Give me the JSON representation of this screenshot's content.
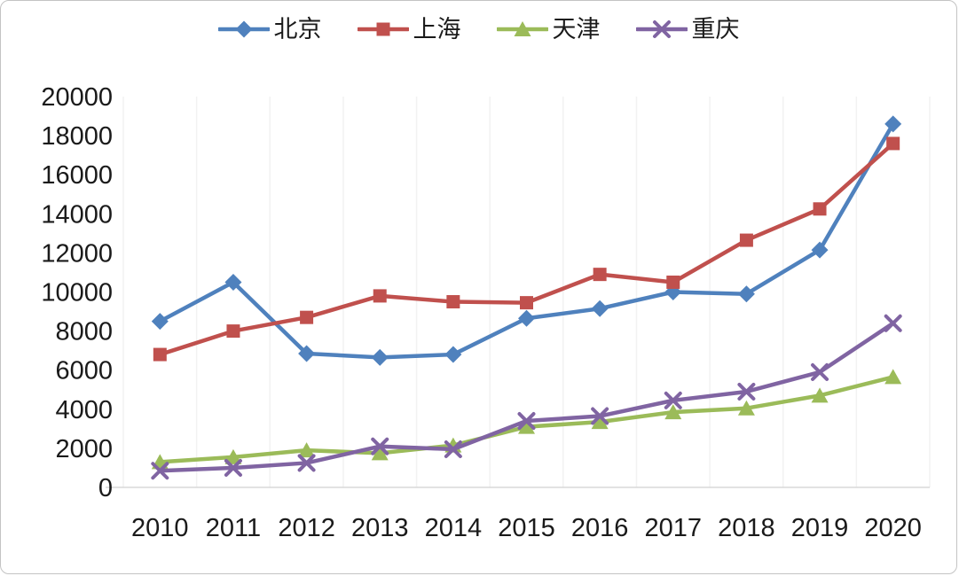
{
  "chart_data": {
    "type": "line",
    "title": "",
    "xlabel": "",
    "ylabel": "",
    "x": [
      "2010",
      "2011",
      "2012",
      "2013",
      "2014",
      "2015",
      "2016",
      "2017",
      "2018",
      "2019",
      "2020"
    ],
    "yticks": [
      "0",
      "2000",
      "4000",
      "6000",
      "8000",
      "10000",
      "12000",
      "14000",
      "16000",
      "18000",
      "20000"
    ],
    "ylim": [
      0,
      20000
    ],
    "ytick_step": 2000,
    "grid": "vertical-only",
    "legend_position": "top",
    "series": [
      {
        "name": "北京",
        "color": "#4F81BD",
        "marker": "diamond",
        "values": [
          8500,
          10500,
          6850,
          6650,
          6800,
          8650,
          9150,
          10000,
          9900,
          12150,
          18600
        ]
      },
      {
        "name": "上海",
        "color": "#C0504D",
        "marker": "square",
        "values": [
          6800,
          8000,
          8700,
          9800,
          9500,
          9450,
          10900,
          10500,
          12650,
          14250,
          17600
        ]
      },
      {
        "name": "天津",
        "color": "#9BBB59",
        "marker": "triangle",
        "values": [
          1300,
          1550,
          1900,
          1750,
          2150,
          3100,
          3350,
          3850,
          4050,
          4700,
          5650
        ]
      },
      {
        "name": "重庆",
        "color": "#8064A2",
        "marker": "x",
        "values": [
          850,
          1000,
          1250,
          2100,
          1950,
          3400,
          3650,
          4450,
          4900,
          5900,
          8400
        ]
      }
    ],
    "colors": {
      "gridline": "#f2f2f2",
      "axis_line": "#d8d8d8",
      "text": "#1a1a1a"
    }
  }
}
